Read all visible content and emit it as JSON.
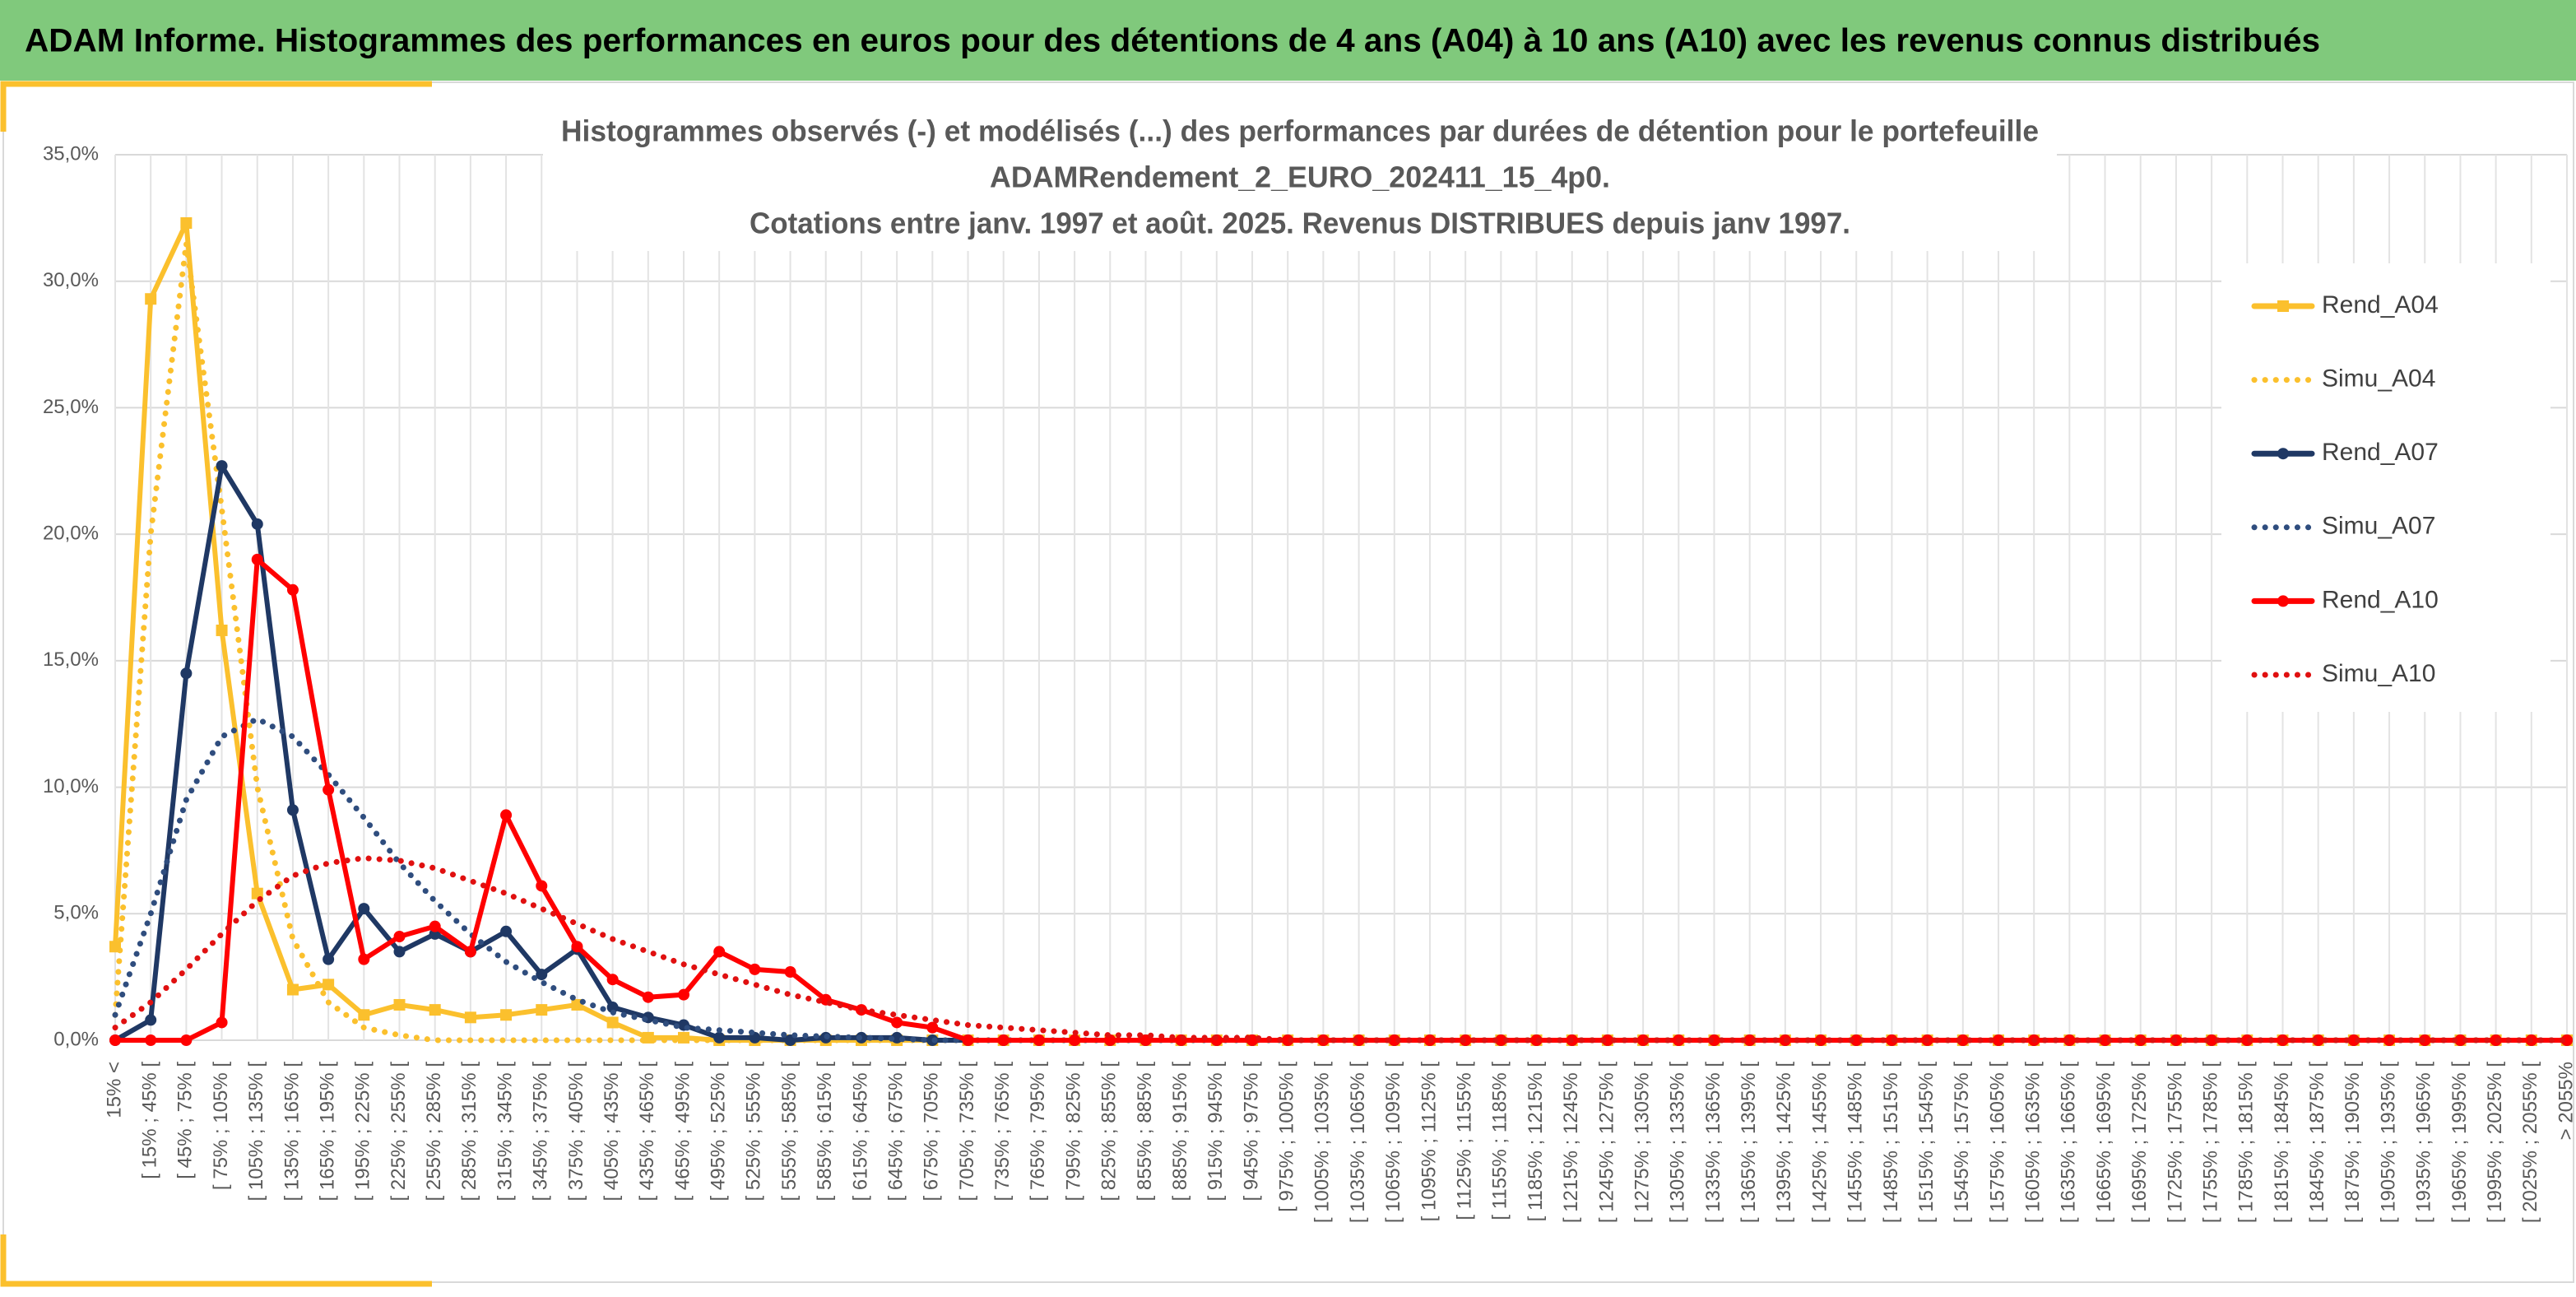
{
  "header": {
    "title": "ADAM Informe. Histogrammes des performances en euros pour des détentions de 4 ans (A04) à 10 ans (A10) avec les revenus connus distribués"
  },
  "chart_data": {
    "type": "line",
    "title": [
      "Histogrammes observés (-) et modélisés (...) des performances par durées de détention pour le portefeuille",
      "ADAMRendement_2_EURO_202411_15_4p0.",
      "Cotations entre janv. 1997 et août. 2025. Revenus DISTRIBUES depuis janv 1997."
    ],
    "categories": [
      "15% <",
      "[ 15% ; 45% [",
      "[ 45% ; 75% [",
      "[ 75% ; 105% [",
      "[ 105% ; 135% [",
      "[ 135% ; 165% [",
      "[ 165% ; 195% [",
      "[ 195% ; 225% [",
      "[ 225% ; 255% [",
      "[ 255% ; 285% [",
      "[ 285% ; 315% [",
      "[ 315% ; 345% [",
      "[ 345% ; 375% [",
      "[ 375% ; 405% [",
      "[ 405% ; 435% [",
      "[ 435% ; 465% [",
      "[ 465% ; 495% [",
      "[ 495% ; 525% [",
      "[ 525% ; 555% [",
      "[ 555% ; 585% [",
      "[ 585% ; 615% [",
      "[ 615% ; 645% [",
      "[ 645% ; 675% [",
      "[ 675% ; 705% [",
      "[ 705% ; 735% [",
      "[ 735% ; 765% [",
      "[ 765% ; 795% [",
      "[ 795% ; 825% [",
      "[ 825% ; 855% [",
      "[ 855% ; 885% [",
      "[ 885% ; 915% [",
      "[ 915% ; 945% [",
      "[ 945% ; 975% [",
      "[ 975% ; 1005% [",
      "[ 1005% ; 1035% [",
      "[ 1035% ; 1065% [",
      "[ 1065% ; 1095% [",
      "[ 1095% ; 1125% [",
      "[ 1125% ; 1155% [",
      "[ 1155% ; 1185% [",
      "[ 1185% ; 1215% [",
      "[ 1215% ; 1245% [",
      "[ 1245% ; 1275% [",
      "[ 1275% ; 1305% [",
      "[ 1305% ; 1335% [",
      "[ 1335% ; 1365% [",
      "[ 1365% ; 1395% [",
      "[ 1395% ; 1425% [",
      "[ 1425% ; 1455% [",
      "[ 1455% ; 1485% [",
      "[ 1485% ; 1515% [",
      "[ 1515% ; 1545% [",
      "[ 1545% ; 1575% [",
      "[ 1575% ; 1605% [",
      "[ 1605% ; 1635% [",
      "[ 1635% ; 1665% [",
      "[ 1665% ; 1695% [",
      "[ 1695% ; 1725% [",
      "[ 1725% ; 1755% [",
      "[ 1755% ; 1785% [",
      "[ 1785% ; 1815% [",
      "[ 1815% ; 1845% [",
      "[ 1845% ; 1875% [",
      "[ 1875% ; 1905% [",
      "[ 1905% ; 1935% [",
      "[ 1935% ; 1965% [",
      "[ 1965% ; 1995% [",
      "[ 1995% ; 2025% [",
      "[ 2025% ; 2055% [",
      "> 2055%"
    ],
    "series": [
      {
        "name": "Rend_A04",
        "color": "#fbc02d",
        "style": "solid",
        "marker": "square",
        "values": [
          3.7,
          29.3,
          32.3,
          16.2,
          5.8,
          2.0,
          2.2,
          1.0,
          1.4,
          1.2,
          0.9,
          1.0,
          1.2,
          1.4,
          0.7,
          0.1,
          0.1,
          0,
          0,
          0,
          0,
          0,
          0,
          0,
          0,
          0,
          0,
          0,
          0,
          0,
          0,
          0,
          0,
          0,
          0,
          0,
          0,
          0,
          0,
          0,
          0,
          0,
          0,
          0,
          0,
          0,
          0,
          0,
          0,
          0,
          0,
          0,
          0,
          0,
          0,
          0,
          0,
          0,
          0,
          0,
          0,
          0,
          0,
          0,
          0,
          0,
          0,
          0,
          0,
          0
        ]
      },
      {
        "name": "Simu_A04",
        "color": "#fbc02d",
        "style": "dotted",
        "marker": "none",
        "values": [
          1,
          20,
          31.5,
          21,
          10,
          4,
          1.5,
          0.5,
          0.2,
          0,
          0,
          0,
          0,
          0,
          0,
          0,
          0,
          0,
          0,
          0,
          0,
          0,
          0,
          0,
          0,
          0,
          0,
          0,
          0,
          0,
          0,
          0,
          0,
          0,
          0,
          0,
          0,
          0,
          0,
          0,
          0,
          0,
          0,
          0,
          0,
          0,
          0,
          0,
          0,
          0,
          0,
          0,
          0,
          0,
          0,
          0,
          0,
          0,
          0,
          0,
          0,
          0,
          0,
          0,
          0,
          0,
          0,
          0,
          0,
          0
        ]
      },
      {
        "name": "Rend_A07",
        "color": "#1f3864",
        "style": "solid",
        "marker": "circle",
        "values": [
          0,
          0.8,
          14.5,
          22.7,
          20.4,
          9.1,
          3.2,
          5.2,
          3.5,
          4.2,
          3.5,
          4.3,
          2.6,
          3.6,
          1.3,
          0.9,
          0.6,
          0.1,
          0.1,
          0,
          0.1,
          0.1,
          0.1,
          0,
          0,
          0,
          0,
          0,
          0,
          0,
          0,
          0,
          0,
          0,
          0,
          0,
          0,
          0,
          0,
          0,
          0,
          0,
          0,
          0,
          0,
          0,
          0,
          0,
          0,
          0,
          0,
          0,
          0,
          0,
          0,
          0,
          0,
          0,
          0,
          0,
          0,
          0,
          0,
          0,
          0,
          0,
          0,
          0,
          0,
          0
        ]
      },
      {
        "name": "Simu_A07",
        "color": "#2f4d7e",
        "style": "dotted",
        "marker": "none",
        "values": [
          1,
          5,
          9.5,
          12,
          12.7,
          12,
          10.5,
          8.8,
          7,
          5.5,
          4.2,
          3.1,
          2.3,
          1.6,
          1.1,
          0.8,
          0.5,
          0.4,
          0.3,
          0.2,
          0.15,
          0.1,
          0.05,
          0,
          0,
          0,
          0,
          0,
          0,
          0,
          0,
          0,
          0,
          0,
          0,
          0,
          0,
          0,
          0,
          0,
          0,
          0,
          0,
          0,
          0,
          0,
          0,
          0,
          0,
          0,
          0,
          0,
          0,
          0,
          0,
          0,
          0,
          0,
          0,
          0,
          0,
          0,
          0,
          0,
          0,
          0,
          0,
          0,
          0,
          0
        ]
      },
      {
        "name": "Rend_A10",
        "color": "#ff0000",
        "style": "solid",
        "marker": "circle",
        "values": [
          0,
          0,
          0,
          0.7,
          19.0,
          17.8,
          9.9,
          3.2,
          4.1,
          4.5,
          3.5,
          8.9,
          6.1,
          3.7,
          2.4,
          1.7,
          1.8,
          3.5,
          2.8,
          2.7,
          1.6,
          1.2,
          0.7,
          0.5,
          0,
          0,
          0,
          0,
          0,
          0,
          0,
          0,
          0,
          0,
          0,
          0,
          0,
          0,
          0,
          0,
          0,
          0,
          0,
          0,
          0,
          0,
          0,
          0,
          0,
          0,
          0,
          0,
          0,
          0,
          0,
          0,
          0,
          0,
          0,
          0,
          0,
          0,
          0,
          0,
          0,
          0,
          0,
          0,
          0,
          0
        ]
      },
      {
        "name": "Simu_A10",
        "color": "#e01010",
        "style": "dotted",
        "marker": "none",
        "values": [
          0.5,
          1.5,
          2.8,
          4.2,
          5.5,
          6.5,
          7.0,
          7.2,
          7.1,
          6.8,
          6.3,
          5.8,
          5.2,
          4.6,
          4.0,
          3.5,
          3.0,
          2.6,
          2.2,
          1.8,
          1.5,
          1.2,
          1.0,
          0.8,
          0.6,
          0.5,
          0.4,
          0.3,
          0.2,
          0.2,
          0.1,
          0.1,
          0.1,
          0,
          0,
          0,
          0,
          0,
          0,
          0,
          0,
          0,
          0,
          0,
          0,
          0,
          0,
          0,
          0,
          0,
          0,
          0,
          0,
          0,
          0,
          0,
          0,
          0,
          0,
          0,
          0,
          0,
          0,
          0,
          0,
          0,
          0,
          0,
          0,
          0
        ]
      }
    ],
    "ylim": [
      0,
      35
    ],
    "yticks": [
      {
        "value": 0,
        "label": "0,0%"
      },
      {
        "value": 5,
        "label": "5,0%"
      },
      {
        "value": 10,
        "label": "10,0%"
      },
      {
        "value": 15,
        "label": "15,0%"
      },
      {
        "value": 20,
        "label": "20,0%"
      },
      {
        "value": 25,
        "label": "25,0%"
      },
      {
        "value": 30,
        "label": "30,0%"
      },
      {
        "value": 35,
        "label": "35,0%"
      }
    ],
    "grid": true,
    "legend": "right"
  }
}
